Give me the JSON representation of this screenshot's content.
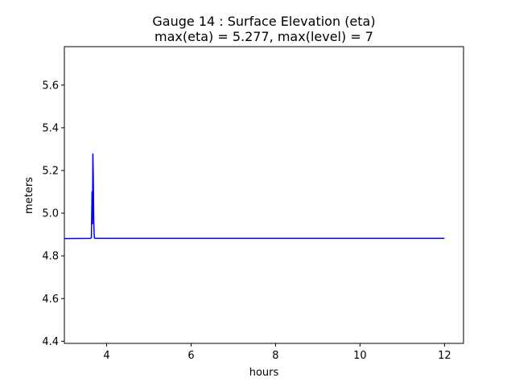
{
  "figure": {
    "title_line1": "Gauge 14 : Surface Elevation (eta)",
    "title_line2": "max(eta) =   5.277,    max(level) = 7"
  },
  "chart_data": {
    "type": "line",
    "title": "Gauge 14 : Surface Elevation (eta)",
    "subtitle": "max(eta) =   5.277,    max(level) = 7",
    "xlabel": "hours",
    "ylabel": "meters",
    "xlim": [
      3.0,
      12.45
    ],
    "ylim": [
      4.39,
      5.78
    ],
    "xticks": [
      4,
      6,
      8,
      10,
      12
    ],
    "xtick_labels": [
      "4",
      "6",
      "8",
      "10",
      "12"
    ],
    "yticks": [
      4.4,
      4.6,
      4.8,
      5.0,
      5.2,
      5.4,
      5.6
    ],
    "ytick_labels": [
      "4.4",
      "4.6",
      "4.8",
      "5.0",
      "5.2",
      "5.4",
      "5.6"
    ],
    "grid": false,
    "series": [
      {
        "color": "#0000ff",
        "x": [
          3.0,
          3.62,
          3.64,
          3.655,
          3.665,
          3.675,
          3.685,
          3.695,
          3.705,
          3.715,
          3.73,
          4.0,
          6.0,
          8.0,
          10.0,
          12.0
        ],
        "y": [
          4.881,
          4.882,
          4.885,
          5.1,
          4.95,
          5.277,
          5.17,
          4.97,
          4.9,
          4.883,
          4.882,
          4.882,
          4.882,
          4.882,
          4.882,
          4.882
        ]
      }
    ]
  }
}
